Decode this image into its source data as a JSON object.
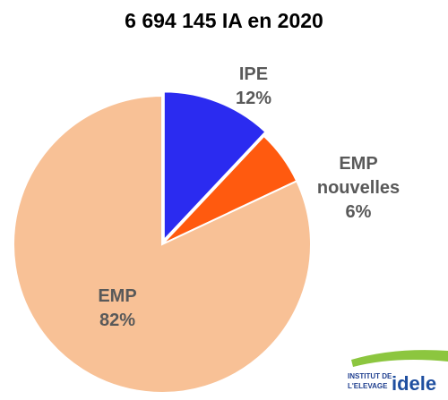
{
  "chart_data": {
    "type": "pie",
    "title": "6 694 145 IA en 2020",
    "categories": [
      "IPE",
      "EMP nouvelles",
      "EMP"
    ],
    "values": [
      12,
      6,
      82
    ],
    "value_labels": [
      "12%",
      "6%",
      "82%"
    ],
    "colors": [
      "#2b2bf0",
      "#ff5a0f",
      "#f8c196"
    ]
  },
  "logo": {
    "line1": "INSTITUT DE",
    "line2": "L'ELEVAGE",
    "brand": "idele"
  }
}
